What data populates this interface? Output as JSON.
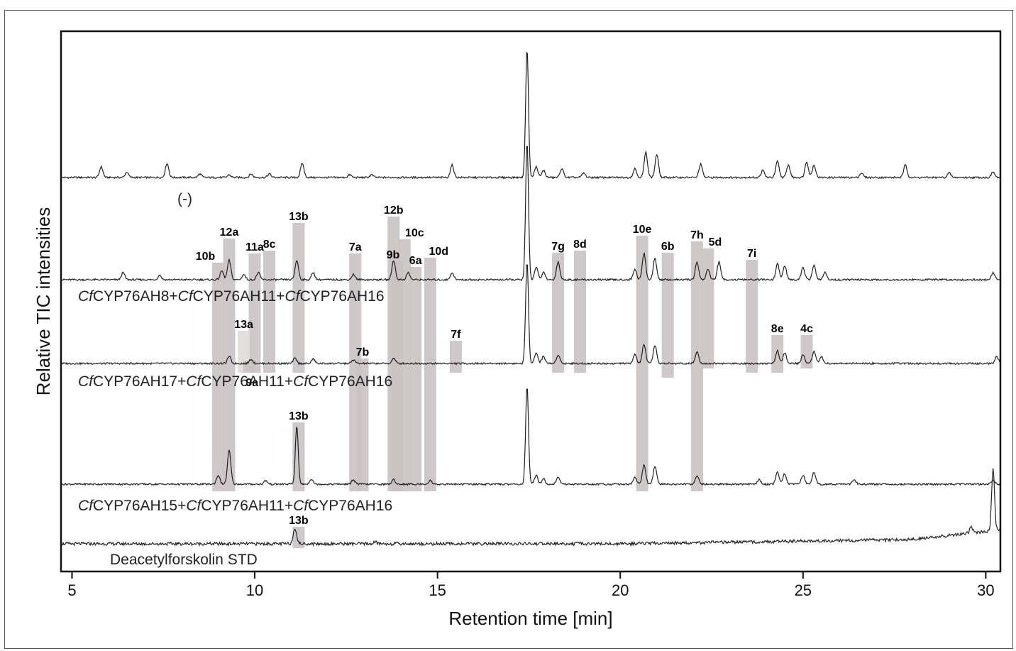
{
  "chart_data": {
    "type": "line",
    "xlabel": "Retention time [min]",
    "ylabel": "Relative TIC intensities",
    "xlim": [
      4.7,
      30.4
    ],
    "x_ticks": [
      "5",
      "10",
      "15",
      "20",
      "25",
      "30"
    ],
    "x_tick_values": [
      5,
      10,
      15,
      20,
      25,
      30
    ],
    "grid": false,
    "legend": "none",
    "line_color": "#222222",
    "band_color": "#c9c2c2",
    "series": [
      {
        "name": "(-)",
        "peaks": [
          [
            5.8,
            0.12
          ],
          [
            6.5,
            0.06
          ],
          [
            7.6,
            0.16
          ],
          [
            8.5,
            0.04
          ],
          [
            9.3,
            0.03
          ],
          [
            9.9,
            0.04
          ],
          [
            10.4,
            0.04
          ],
          [
            11.3,
            0.16
          ],
          [
            12.6,
            0.03
          ],
          [
            13.2,
            0.03
          ],
          [
            15.4,
            0.14
          ],
          [
            17.45,
            1.45
          ],
          [
            17.7,
            0.12
          ],
          [
            17.9,
            0.08
          ],
          [
            18.4,
            0.1
          ],
          [
            19.0,
            0.05
          ],
          [
            20.4,
            0.1
          ],
          [
            20.7,
            0.28
          ],
          [
            21.0,
            0.26
          ],
          [
            22.2,
            0.15
          ],
          [
            23.9,
            0.08
          ],
          [
            24.3,
            0.18
          ],
          [
            24.6,
            0.14
          ],
          [
            25.1,
            0.18
          ],
          [
            25.3,
            0.14
          ],
          [
            26.6,
            0.05
          ],
          [
            27.8,
            0.14
          ],
          [
            29.0,
            0.05
          ],
          [
            30.2,
            0.06
          ]
        ]
      },
      {
        "name": "CfCYP76AH8+CfCYP76AH11+CfCYP76AH16",
        "name_parts": [
          [
            "Cf",
            "i"
          ],
          [
            "CYP76AH8+",
            ""
          ],
          [
            "Cf",
            "i"
          ],
          [
            "CYP76AH11+",
            ""
          ],
          [
            "Cf",
            "i"
          ],
          [
            "CYP76AH16",
            ""
          ]
        ],
        "peaks": [
          [
            6.4,
            0.08
          ],
          [
            7.4,
            0.05
          ],
          [
            9.1,
            0.1
          ],
          [
            9.3,
            0.22
          ],
          [
            9.7,
            0.06
          ],
          [
            10.1,
            0.08
          ],
          [
            11.15,
            0.22
          ],
          [
            11.6,
            0.08
          ],
          [
            12.7,
            0.06
          ],
          [
            13.8,
            0.22
          ],
          [
            14.2,
            0.08
          ],
          [
            15.4,
            0.08
          ],
          [
            17.45,
            1.55
          ],
          [
            17.7,
            0.14
          ],
          [
            17.9,
            0.08
          ],
          [
            18.3,
            0.2
          ],
          [
            20.4,
            0.12
          ],
          [
            20.65,
            0.3
          ],
          [
            20.95,
            0.24
          ],
          [
            22.1,
            0.2
          ],
          [
            22.4,
            0.12
          ],
          [
            22.7,
            0.2
          ],
          [
            24.3,
            0.18
          ],
          [
            24.5,
            0.16
          ],
          [
            25.0,
            0.14
          ],
          [
            25.3,
            0.16
          ],
          [
            25.6,
            0.08
          ],
          [
            30.2,
            0.08
          ]
        ]
      },
      {
        "name": "CfCYP76AH17+CfCYP76AH11+CfCYP76AH16",
        "name_parts": [
          [
            "Cf",
            "i"
          ],
          [
            "CYP76AH17+",
            ""
          ],
          [
            "Cf",
            "i"
          ],
          [
            "CYP76AH11+",
            ""
          ],
          [
            "Cf",
            "i"
          ],
          [
            "CYP76AH16",
            ""
          ]
        ],
        "peaks": [
          [
            9.3,
            0.08
          ],
          [
            9.9,
            0.05
          ],
          [
            11.1,
            0.06
          ],
          [
            11.6,
            0.05
          ],
          [
            12.7,
            0.04
          ],
          [
            13.8,
            0.06
          ],
          [
            17.45,
            1.15
          ],
          [
            17.7,
            0.12
          ],
          [
            17.9,
            0.08
          ],
          [
            18.3,
            0.1
          ],
          [
            20.4,
            0.1
          ],
          [
            20.65,
            0.22
          ],
          [
            20.95,
            0.2
          ],
          [
            22.1,
            0.14
          ],
          [
            24.3,
            0.14
          ],
          [
            24.5,
            0.12
          ],
          [
            25.0,
            0.1
          ],
          [
            25.3,
            0.14
          ],
          [
            25.5,
            0.08
          ],
          [
            30.3,
            0.08
          ]
        ]
      },
      {
        "name": "CfCYP76AH15+CfCYP76AH11+CfCYP76AH16",
        "name_parts": [
          [
            "Cf",
            "i"
          ],
          [
            "CYP76AH15+",
            ""
          ],
          [
            "Cf",
            "i"
          ],
          [
            "CYP76AH11+",
            ""
          ],
          [
            "Cf",
            "i"
          ],
          [
            "CYP76AH16",
            ""
          ]
        ],
        "peaks": [
          [
            9.0,
            0.1
          ],
          [
            9.3,
            0.38
          ],
          [
            10.3,
            0.04
          ],
          [
            11.15,
            0.66
          ],
          [
            11.55,
            0.06
          ],
          [
            12.7,
            0.05
          ],
          [
            13.8,
            0.05
          ],
          [
            14.8,
            0.04
          ],
          [
            17.45,
            1.1
          ],
          [
            17.7,
            0.1
          ],
          [
            17.9,
            0.06
          ],
          [
            18.3,
            0.08
          ],
          [
            20.4,
            0.08
          ],
          [
            20.65,
            0.22
          ],
          [
            20.95,
            0.2
          ],
          [
            22.1,
            0.1
          ],
          [
            23.8,
            0.05
          ],
          [
            24.3,
            0.14
          ],
          [
            24.5,
            0.12
          ],
          [
            25.0,
            0.1
          ],
          [
            25.3,
            0.14
          ],
          [
            26.4,
            0.05
          ],
          [
            30.2,
            0.05
          ]
        ]
      },
      {
        "name": "Deacetylforskolin STD",
        "name_parts": [
          [
            "Deacetylforskolin STD",
            ""
          ]
        ],
        "peaks": [
          [
            11.1,
            0.18
          ],
          [
            13.3,
            0.02
          ],
          [
            29.6,
            0.06
          ],
          [
            30.2,
            0.7
          ]
        ]
      }
    ],
    "bands": [
      {
        "label": "10b",
        "x": 9.0,
        "from": 2,
        "to": 4
      },
      {
        "label": "12a",
        "x": 9.3,
        "from": 2,
        "to": 4
      },
      {
        "label": "11a",
        "x": 10.0,
        "from": 2,
        "to": 3
      },
      {
        "label": "8c",
        "x": 10.4,
        "from": 2,
        "to": 3
      },
      {
        "label": "13b",
        "x": 11.2,
        "from": 2,
        "to": 3
      },
      {
        "label": "7a",
        "x": 12.75,
        "from": 2,
        "to": 4
      },
      {
        "label": "12b",
        "x": 13.8,
        "from": 2,
        "to": 4
      },
      {
        "label": "9b",
        "x": 13.9,
        "from": 2,
        "to": 4
      },
      {
        "label": "10c",
        "x": 14.1,
        "from": 2,
        "to": 4
      },
      {
        "label": "6a",
        "x": 14.4,
        "from": 2,
        "to": 4
      },
      {
        "label": "10d",
        "x": 14.8,
        "from": 2,
        "to": 4
      },
      {
        "label": "7g",
        "x": 18.3,
        "from": 2,
        "to": 3
      },
      {
        "label": "8d",
        "x": 18.9,
        "from": 2,
        "to": 3
      },
      {
        "label": "10e",
        "x": 20.6,
        "from": 2,
        "to": 4
      },
      {
        "label": "6b",
        "x": 21.3,
        "from": 2,
        "to": 3
      },
      {
        "label": "7h",
        "x": 22.1,
        "from": 2,
        "to": 4
      },
      {
        "label": "5d",
        "x": 22.4,
        "from": 2,
        "to": 3
      },
      {
        "label": "7i",
        "x": 23.6,
        "from": 2,
        "to": 3
      },
      {
        "label": "13a",
        "x": 9.7,
        "from": 3,
        "to": 3
      },
      {
        "label": "9a",
        "x": 9.85,
        "from": 3,
        "to": 3
      },
      {
        "label": "7b",
        "x": 12.95,
        "from": 3,
        "to": 4
      },
      {
        "label": "7f",
        "x": 15.5,
        "from": 3,
        "to": 3
      },
      {
        "label": "8e",
        "x": 24.3,
        "from": 3,
        "to": 3
      },
      {
        "label": "4c",
        "x": 25.1,
        "from": 3,
        "to": 3
      },
      {
        "label": "13b",
        "x": 11.2,
        "from": 4,
        "to": 4
      },
      {
        "label": "13b",
        "x": 11.2,
        "from": 5,
        "to": 5
      }
    ]
  }
}
